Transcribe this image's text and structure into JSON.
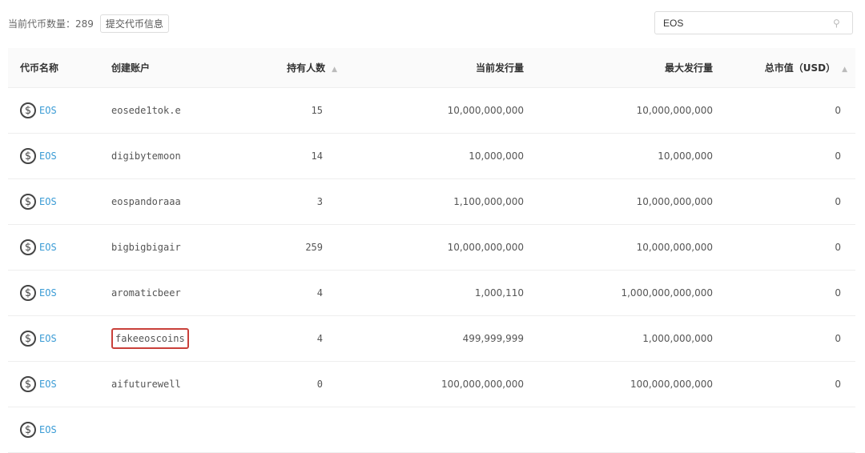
{
  "toolbar": {
    "count_label": "当前代币数量：",
    "count": "289",
    "submit_label": "提交代币信息"
  },
  "search": {
    "value": "EOS",
    "icon": "search-icon"
  },
  "table": {
    "headers": [
      "代币名称",
      "创建账户",
      "持有人数",
      "当前发行量",
      "最大发行量",
      "总市值（USD）"
    ],
    "rows": [
      {
        "name": "EOS",
        "account": "eosede1tok.e",
        "holders": "15",
        "supply": "10,000,000,000",
        "max": "10,000,000,000",
        "cap": "0"
      },
      {
        "name": "EOS",
        "account": "digibytemoon",
        "holders": "14",
        "supply": "10,000,000",
        "max": "10,000,000",
        "cap": "0"
      },
      {
        "name": "EOS",
        "account": "eospandoraaa",
        "holders": "3",
        "supply": "1,100,000,000",
        "max": "10,000,000,000",
        "cap": "0"
      },
      {
        "name": "EOS",
        "account": "bigbigbigair",
        "holders": "259",
        "supply": "10,000,000,000",
        "max": "10,000,000,000",
        "cap": "0"
      },
      {
        "name": "EOS",
        "account": "aromaticbeer",
        "holders": "4",
        "supply": "1,000,110",
        "max": "1,000,000,000,000",
        "cap": "0"
      },
      {
        "name": "EOS",
        "account": "fakeeoscoins",
        "holders": "4",
        "supply": "499,999,999",
        "max": "1,000,000,000",
        "cap": "0",
        "highlighted": true
      },
      {
        "name": "EOS",
        "account": "aifuturewell",
        "holders": "0",
        "supply": "100,000,000,000",
        "max": "100,000,000,000",
        "cap": "0"
      },
      {
        "name": "EOS"
      }
    ]
  },
  "colors": {
    "link": "#3a9bd5",
    "highlight": "#c9403a"
  }
}
